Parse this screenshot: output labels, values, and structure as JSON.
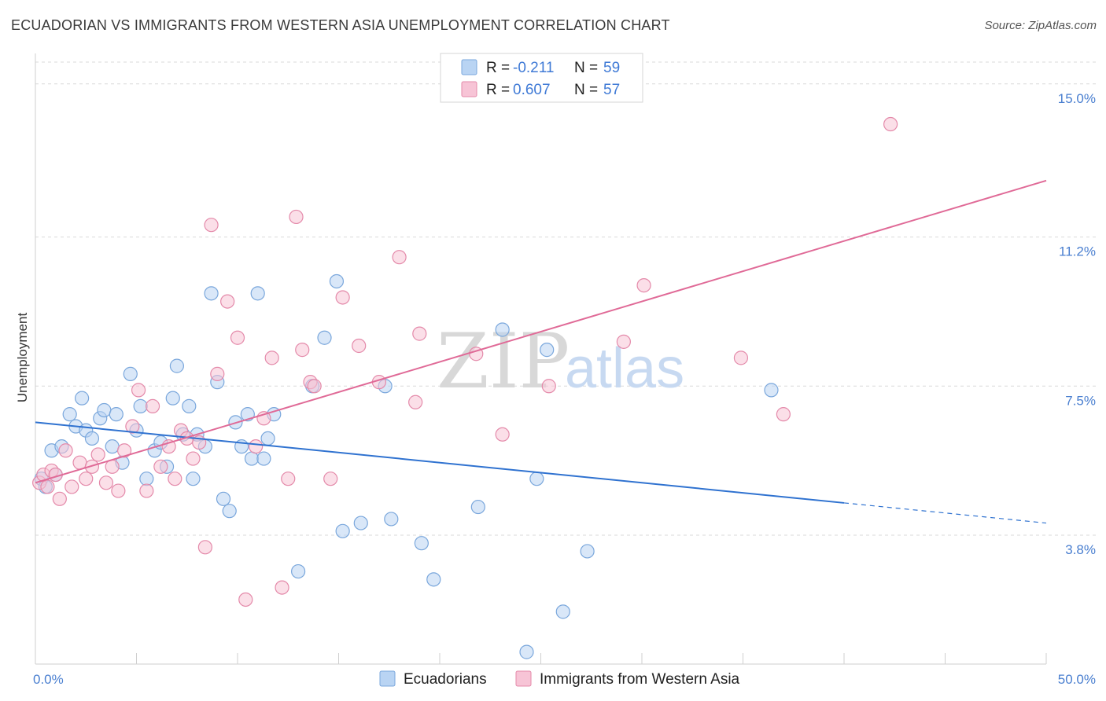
{
  "title": "ECUADORIAN VS IMMIGRANTS FROM WESTERN ASIA UNEMPLOYMENT CORRELATION CHART",
  "source": "Source: ZipAtlas.com",
  "watermark": {
    "zip": "ZIP",
    "atlas": "atlas"
  },
  "colors": {
    "blue_fill": "#b9d4f3",
    "blue_stroke": "#7aa7dc",
    "blue_line": "#2f72d0",
    "pink_fill": "#f7c4d6",
    "pink_stroke": "#e48aaa",
    "pink_line": "#e06a97",
    "grid": "#d9d9d9",
    "axis_label": "#4a7fd0"
  },
  "legend": {
    "rows": [
      {
        "r_label": "R = ",
        "r_value": "-0.211",
        "n_label": "N = ",
        "n_value": "59"
      },
      {
        "r_label": "R = ",
        "r_value": "0.607",
        "n_label": "N = ",
        "n_value": "57"
      }
    ]
  },
  "bottom_legend": [
    "Ecuadorians",
    "Immigrants from Western Asia"
  ],
  "chart_data": {
    "type": "scatter",
    "title": "ECUADORIAN VS IMMIGRANTS FROM WESTERN ASIA UNEMPLOYMENT CORRELATION CHART",
    "xlabel": "",
    "ylabel": "Unemployment",
    "xlim": [
      0,
      50
    ],
    "ylim": [
      0.6,
      15.6
    ],
    "x_tick_labels": [
      "0.0%",
      "50.0%"
    ],
    "y_ticks": [
      3.8,
      7.5,
      11.2,
      15.0
    ],
    "y_tick_labels": [
      "3.8%",
      "7.5%",
      "11.2%",
      "15.0%"
    ],
    "grid": true,
    "legend_position": "top-center",
    "series": [
      {
        "name": "Ecuadorians",
        "R": -0.211,
        "N": 59,
        "trend": {
          "x0": 0,
          "y0": 6.6,
          "x1": 40,
          "y1": 4.6,
          "dash_to_x": 50,
          "dash_to_y": 4.1
        },
        "points": [
          [
            0.3,
            5.2
          ],
          [
            0.5,
            5.0
          ],
          [
            0.8,
            5.9
          ],
          [
            1.0,
            5.3
          ],
          [
            1.3,
            6.0
          ],
          [
            1.7,
            6.8
          ],
          [
            2.0,
            6.5
          ],
          [
            2.3,
            7.2
          ],
          [
            2.5,
            6.4
          ],
          [
            2.8,
            6.2
          ],
          [
            3.2,
            6.7
          ],
          [
            3.4,
            6.9
          ],
          [
            3.8,
            6.0
          ],
          [
            4.0,
            6.8
          ],
          [
            4.3,
            5.6
          ],
          [
            4.7,
            7.8
          ],
          [
            5.0,
            6.4
          ],
          [
            5.2,
            7.0
          ],
          [
            5.5,
            5.2
          ],
          [
            5.9,
            5.9
          ],
          [
            6.2,
            6.1
          ],
          [
            6.5,
            5.5
          ],
          [
            6.8,
            7.2
          ],
          [
            7.0,
            8.0
          ],
          [
            7.3,
            6.3
          ],
          [
            7.6,
            7.0
          ],
          [
            7.8,
            5.2
          ],
          [
            8.0,
            6.3
          ],
          [
            8.4,
            6.0
          ],
          [
            8.7,
            9.8
          ],
          [
            9.0,
            7.6
          ],
          [
            9.3,
            4.7
          ],
          [
            9.6,
            4.4
          ],
          [
            9.9,
            6.6
          ],
          [
            10.2,
            6.0
          ],
          [
            10.5,
            6.8
          ],
          [
            10.7,
            5.7
          ],
          [
            11.0,
            9.8
          ],
          [
            11.3,
            5.7
          ],
          [
            11.5,
            6.2
          ],
          [
            11.8,
            6.8
          ],
          [
            13.0,
            2.9
          ],
          [
            13.7,
            7.5
          ],
          [
            14.3,
            8.7
          ],
          [
            14.9,
            10.1
          ],
          [
            15.2,
            3.9
          ],
          [
            16.1,
            4.1
          ],
          [
            17.3,
            7.5
          ],
          [
            17.6,
            4.2
          ],
          [
            19.1,
            3.6
          ],
          [
            19.7,
            2.7
          ],
          [
            21.9,
            4.5
          ],
          [
            23.1,
            8.9
          ],
          [
            24.3,
            0.9
          ],
          [
            24.8,
            5.2
          ],
          [
            25.3,
            8.4
          ],
          [
            26.1,
            1.9
          ],
          [
            27.3,
            3.4
          ],
          [
            36.4,
            7.4
          ]
        ]
      },
      {
        "name": "Immigrants from Western Asia",
        "R": 0.607,
        "N": 57,
        "trend": {
          "x0": 0,
          "y0": 5.1,
          "x1": 50,
          "y1": 12.6
        },
        "points": [
          [
            0.2,
            5.1
          ],
          [
            0.4,
            5.3
          ],
          [
            0.6,
            5.0
          ],
          [
            0.8,
            5.4
          ],
          [
            1.0,
            5.3
          ],
          [
            1.2,
            4.7
          ],
          [
            1.5,
            5.9
          ],
          [
            1.8,
            5.0
          ],
          [
            2.2,
            5.6
          ],
          [
            2.5,
            5.2
          ],
          [
            2.8,
            5.5
          ],
          [
            3.1,
            5.8
          ],
          [
            3.5,
            5.1
          ],
          [
            3.8,
            5.5
          ],
          [
            4.1,
            4.9
          ],
          [
            4.4,
            5.9
          ],
          [
            4.8,
            6.5
          ],
          [
            5.1,
            7.4
          ],
          [
            5.5,
            4.9
          ],
          [
            5.8,
            7.0
          ],
          [
            6.2,
            5.5
          ],
          [
            6.6,
            6.0
          ],
          [
            6.9,
            5.2
          ],
          [
            7.2,
            6.4
          ],
          [
            7.5,
            6.2
          ],
          [
            7.8,
            5.7
          ],
          [
            8.1,
            6.1
          ],
          [
            8.4,
            3.5
          ],
          [
            8.7,
            11.5
          ],
          [
            9.0,
            7.8
          ],
          [
            9.5,
            9.6
          ],
          [
            10.0,
            8.7
          ],
          [
            10.4,
            2.2
          ],
          [
            10.9,
            6.0
          ],
          [
            11.3,
            6.7
          ],
          [
            11.7,
            8.2
          ],
          [
            12.2,
            2.5
          ],
          [
            12.5,
            5.2
          ],
          [
            12.9,
            11.7
          ],
          [
            13.2,
            8.4
          ],
          [
            13.6,
            7.6
          ],
          [
            13.8,
            7.5
          ],
          [
            14.6,
            5.2
          ],
          [
            15.2,
            9.7
          ],
          [
            16.0,
            8.5
          ],
          [
            17.0,
            7.6
          ],
          [
            18.0,
            10.7
          ],
          [
            18.8,
            7.1
          ],
          [
            19.0,
            8.8
          ],
          [
            21.8,
            8.3
          ],
          [
            23.1,
            6.3
          ],
          [
            25.4,
            7.5
          ],
          [
            29.1,
            8.6
          ],
          [
            30.1,
            10.0
          ],
          [
            34.9,
            8.2
          ],
          [
            37.0,
            6.8
          ],
          [
            42.3,
            14.0
          ]
        ]
      }
    ]
  }
}
